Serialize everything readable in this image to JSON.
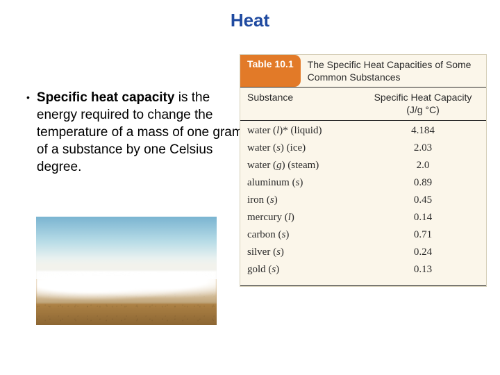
{
  "title": "Heat",
  "bullet": {
    "bold_lead": "Specific heat capacity",
    "rest": " is the energy required to change the temperature of a mass of one gram of a substance by one Celsius degree."
  },
  "table": {
    "badge": "Table 10.1",
    "caption": "The Specific Heat Capacities of Some Common Substances",
    "col1": "Substance",
    "col2_line1": "Specific Heat Capacity",
    "col2_line2": "(J/g °C)",
    "rows": [
      {
        "name_prefix": "water (",
        "state": "l",
        "name_suffix": ")* (liquid)",
        "value": "4.184"
      },
      {
        "name_prefix": "water (",
        "state": "s",
        "name_suffix": ") (ice)",
        "value": "2.03"
      },
      {
        "name_prefix": "water (",
        "state": "g",
        "name_suffix": ") (steam)",
        "value": "2.0"
      },
      {
        "name_prefix": "aluminum (",
        "state": "s",
        "name_suffix": ")",
        "value": "0.89"
      },
      {
        "name_prefix": "iron (",
        "state": "s",
        "name_suffix": ")",
        "value": "0.45"
      },
      {
        "name_prefix": "mercury (",
        "state": "l",
        "name_suffix": ")",
        "value": "0.14"
      },
      {
        "name_prefix": "carbon (",
        "state": "s",
        "name_suffix": ")",
        "value": "0.71"
      },
      {
        "name_prefix": "silver (",
        "state": "s",
        "name_suffix": ")",
        "value": "0.24"
      },
      {
        "name_prefix": "gold (",
        "state": "s",
        "name_suffix": ")",
        "value": "0.13"
      }
    ]
  },
  "colors": {
    "title": "#1f4aa0",
    "badge_bg": "#e27a28",
    "panel_bg": "#fbf6ea",
    "rule": "#2a2a2a"
  }
}
